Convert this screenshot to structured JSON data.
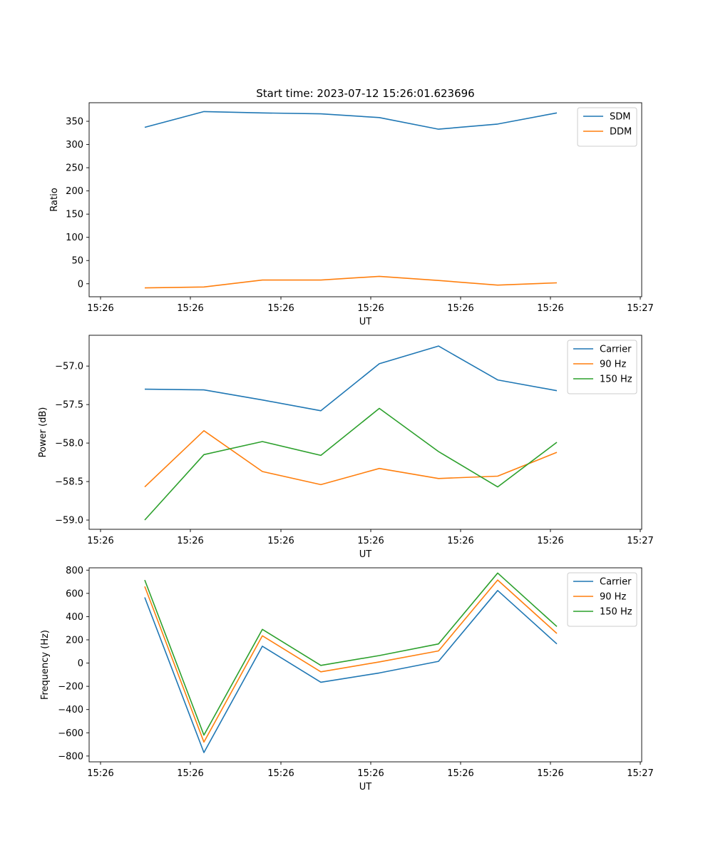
{
  "figure": {
    "title": "Start time: 2023-07-12 15:26:01.623696"
  },
  "chart_data": [
    {
      "type": "line",
      "title": "Start time: 2023-07-12 15:26:01.623696",
      "xlabel": "UT",
      "ylabel": "Ratio",
      "x_tick_labels": [
        "15:26",
        "15:26",
        "15:26",
        "15:26",
        "15:26",
        "15:26",
        "15:26",
        "15:27"
      ],
      "y_ticks": [
        0,
        50,
        100,
        150,
        200,
        250,
        300,
        350
      ],
      "ylim": [
        -28,
        390
      ],
      "legend_position": "top-right",
      "series": [
        {
          "name": "SDM",
          "color": "#1f77b4",
          "values": [
            337,
            371,
            368,
            366,
            358,
            333,
            344,
            368
          ]
        },
        {
          "name": "DDM",
          "color": "#ff7f0e",
          "values": [
            -9,
            -7,
            8,
            8,
            16,
            7,
            -3,
            2
          ]
        }
      ]
    },
    {
      "type": "line",
      "title": "",
      "xlabel": "UT",
      "ylabel": "Power (dB)",
      "x_tick_labels": [
        "15:26",
        "15:26",
        "15:26",
        "15:26",
        "15:26",
        "15:26",
        "15:26",
        "15:27"
      ],
      "y_ticks": [
        -59.0,
        -58.5,
        -58.0,
        -57.5,
        -57.0
      ],
      "y_tick_labels": [
        "−59.0",
        "−58.5",
        "−58.0",
        "−57.5",
        "−57.0"
      ],
      "ylim": [
        -59.12,
        -56.6
      ],
      "legend_position": "top-right",
      "series": [
        {
          "name": "Carrier",
          "color": "#1f77b4",
          "values": [
            -57.3,
            -57.31,
            -57.44,
            -57.58,
            -56.97,
            -56.74,
            -57.18,
            -57.32
          ]
        },
        {
          "name": "90 Hz",
          "color": "#ff7f0e",
          "values": [
            -58.57,
            -57.84,
            -58.37,
            -58.54,
            -58.33,
            -58.46,
            -58.43,
            -58.12
          ]
        },
        {
          "name": "150 Hz",
          "color": "#2ca02c",
          "values": [
            -59.0,
            -58.15,
            -57.98,
            -58.16,
            -57.55,
            -58.11,
            -58.57,
            -57.99
          ]
        }
      ]
    },
    {
      "type": "line",
      "title": "",
      "xlabel": "UT",
      "ylabel": "Frequency (Hz)",
      "x_tick_labels": [
        "15:26",
        "15:26",
        "15:26",
        "15:26",
        "15:26",
        "15:26",
        "15:26",
        "15:27"
      ],
      "y_ticks": [
        -800,
        -600,
        -400,
        -200,
        0,
        200,
        400,
        600,
        800
      ],
      "y_tick_labels": [
        "−800",
        "−600",
        "−400",
        "−200",
        "0",
        "200",
        "400",
        "600",
        "800"
      ],
      "ylim": [
        -850,
        820
      ],
      "legend_position": "top-right",
      "series": [
        {
          "name": "Carrier",
          "color": "#1f77b4",
          "values": [
            565,
            -770,
            145,
            -165,
            -85,
            15,
            625,
            165
          ]
        },
        {
          "name": "90 Hz",
          "color": "#ff7f0e",
          "values": [
            660,
            -680,
            235,
            -75,
            10,
            105,
            715,
            255
          ]
        },
        {
          "name": "150 Hz",
          "color": "#2ca02c",
          "values": [
            715,
            -620,
            290,
            -20,
            65,
            165,
            775,
            315
          ]
        }
      ]
    }
  ]
}
